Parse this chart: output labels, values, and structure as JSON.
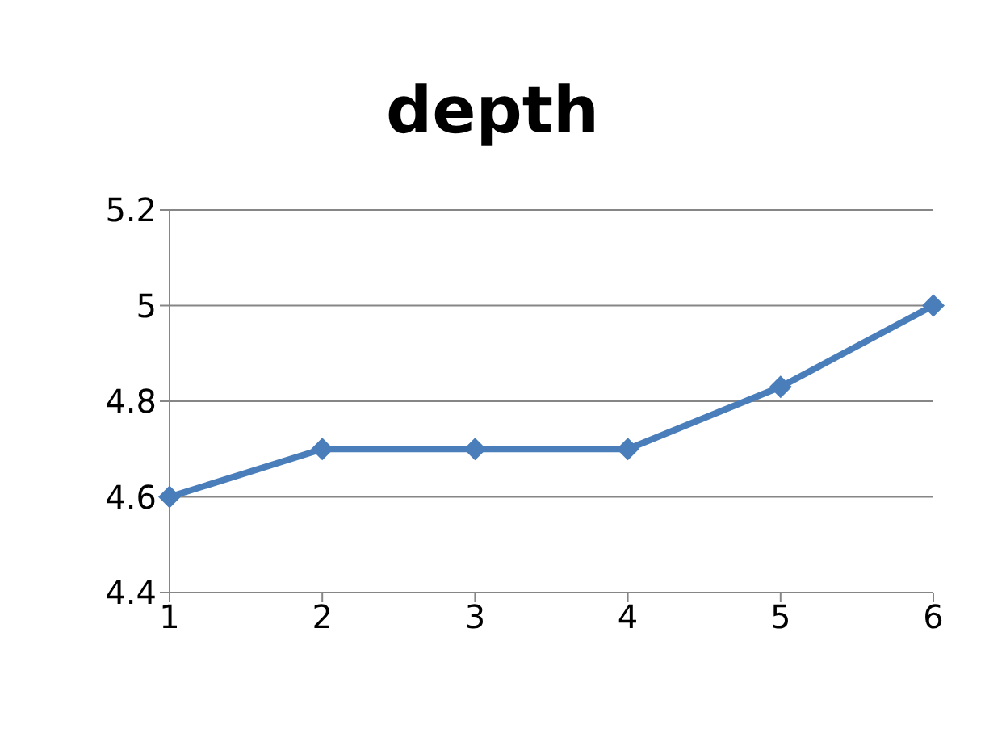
{
  "chart_data": {
    "type": "line",
    "title": "depth",
    "categories": [
      "1",
      "2",
      "3",
      "4",
      "5",
      "6"
    ],
    "series": [
      {
        "color": "#4a7ebb",
        "values": [
          4.6,
          4.7,
          4.7,
          4.7,
          4.83,
          5.0
        ]
      }
    ],
    "ylim": [
      4.4,
      5.2
    ],
    "yticks": [
      4.4,
      4.6,
      4.8,
      5,
      5.2
    ],
    "grid": "y",
    "marker": "diamond",
    "line_style": "solid"
  }
}
